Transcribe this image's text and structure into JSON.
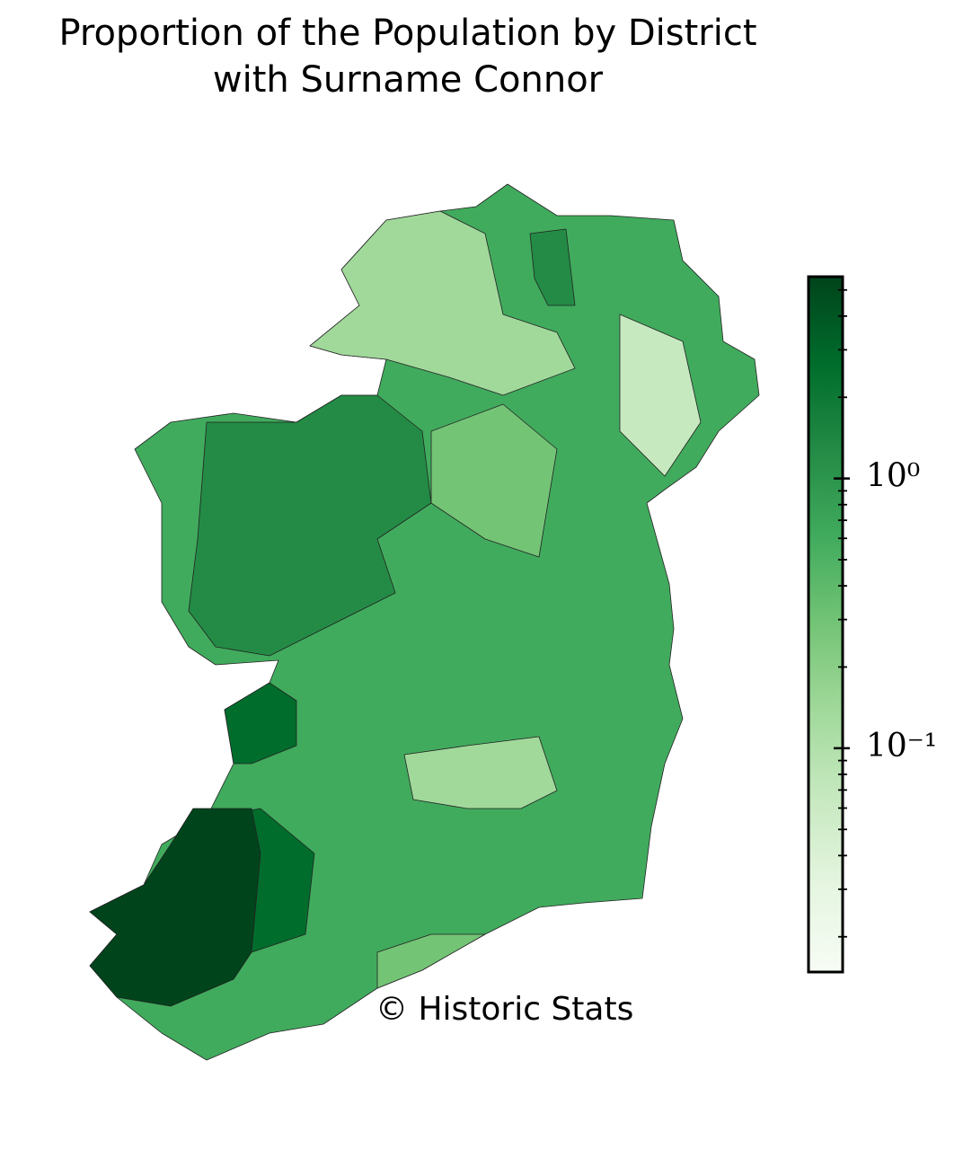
{
  "chart_data": {
    "type": "choropleth",
    "title": [
      "Proportion of the Population by District",
      "with Surname Connor"
    ],
    "annotation": "© Historic Stats",
    "colorbar": {
      "scale": "log",
      "clim": [
        0.0148,
        5.6
      ],
      "ticks": [
        {
          "value": 1,
          "label": "10⁰"
        },
        {
          "value": 0.1,
          "label": "10⁻¹"
        }
      ],
      "minor_ticks": [
        0.02,
        0.03,
        0.04,
        0.05,
        0.06,
        0.07,
        0.08,
        0.09,
        0.2,
        0.3,
        0.4,
        0.5,
        0.6,
        0.7,
        0.8,
        0.9,
        2,
        3,
        4,
        5
      ],
      "colormap": [
        "#f7fcf5",
        "#e5f5e0",
        "#c7e9c0",
        "#a1d99b",
        "#74c476",
        "#41ab5d",
        "#238b45",
        "#006d2c",
        "#00441b"
      ]
    }
  }
}
